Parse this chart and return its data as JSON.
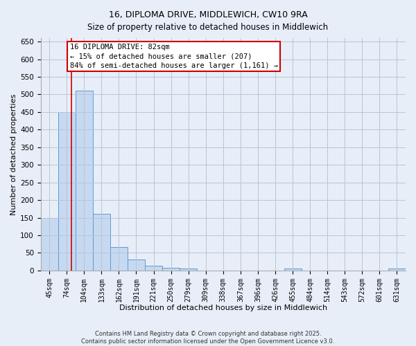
{
  "title1": "16, DIPLOMA DRIVE, MIDDLEWICH, CW10 9RA",
  "title2": "Size of property relative to detached houses in Middlewich",
  "xlabel": "Distribution of detached houses by size in Middlewich",
  "ylabel": "Number of detached properties",
  "categories": [
    "45sqm",
    "74sqm",
    "104sqm",
    "133sqm",
    "162sqm",
    "191sqm",
    "221sqm",
    "250sqm",
    "279sqm",
    "309sqm",
    "338sqm",
    "367sqm",
    "396sqm",
    "426sqm",
    "455sqm",
    "484sqm",
    "514sqm",
    "543sqm",
    "572sqm",
    "601sqm",
    "631sqm"
  ],
  "values": [
    150,
    450,
    510,
    160,
    67,
    32,
    13,
    8,
    5,
    0,
    0,
    0,
    0,
    0,
    5,
    0,
    0,
    0,
    0,
    0,
    5
  ],
  "bar_color": "#c6d9f0",
  "bar_edge_color": "#5b9bd5",
  "red_line_x": 1.27,
  "annotation_title": "16 DIPLOMA DRIVE: 82sqm",
  "annotation_line1": "← 15% of detached houses are smaller (207)",
  "annotation_line2": "84% of semi-detached houses are larger (1,161) →",
  "ylim": [
    0,
    660
  ],
  "yticks": [
    0,
    50,
    100,
    150,
    200,
    250,
    300,
    350,
    400,
    450,
    500,
    550,
    600,
    650
  ],
  "annotation_box_color": "#ffffff",
  "annotation_box_edge": "#cc0000",
  "footer1": "Contains HM Land Registry data © Crown copyright and database right 2025.",
  "footer2": "Contains public sector information licensed under the Open Government Licence v3.0.",
  "background_color": "#e8eef8",
  "grid_color": "#b8c4d8"
}
